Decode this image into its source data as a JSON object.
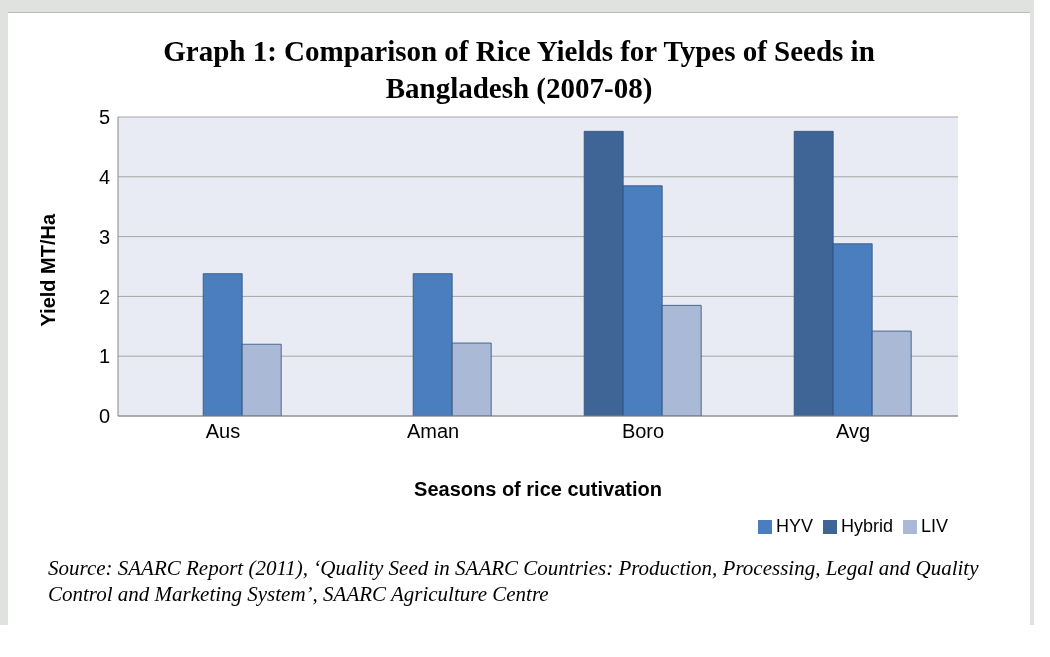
{
  "chart_data": {
    "type": "bar",
    "title": "Graph 1: Comparison of Rice Yields for Types of Seeds in Bangladesh (2007-08)",
    "xlabel": "Seasons of rice cutivation",
    "ylabel": "Yield MT/Ha",
    "categories": [
      "Aus",
      "Aman",
      "Boro",
      "Avg"
    ],
    "series": [
      {
        "name": "Hybrid",
        "color": "#3f6496",
        "values": [
          null,
          null,
          4.76,
          4.76
        ]
      },
      {
        "name": "HYV",
        "color": "#4a7ebf",
        "values": [
          2.38,
          2.38,
          3.85,
          2.88
        ]
      },
      {
        "name": "LIV",
        "color": "#a9b9d6",
        "values": [
          1.2,
          1.22,
          1.85,
          1.42
        ]
      }
    ],
    "ylim": [
      0,
      5
    ],
    "yticks": [
      0,
      1,
      2,
      3,
      4,
      5
    ],
    "grid": "y",
    "legend": "bottom right",
    "annotations": [
      "Source: SAARC Report (2011), ‘Quality Seed in SAARC Countries:  Production, Processing, Legal and Quality Control and Marketing System’, SAARC Agriculture Centre"
    ]
  }
}
